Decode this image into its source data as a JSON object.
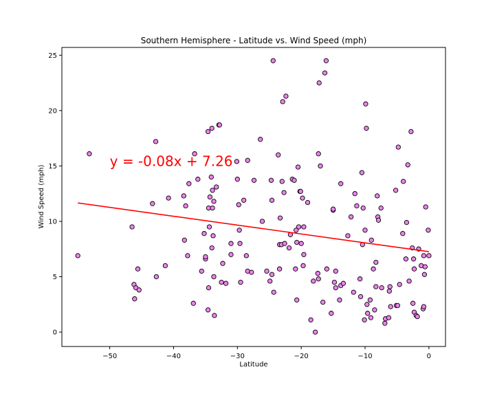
{
  "chart_data": {
    "type": "scatter",
    "title": "Southern Hemisphere - Latitude vs. Wind Speed (mph)",
    "xlabel": "Latitude",
    "ylabel": "Wind Speed (mph)",
    "xlim": [
      -57.5,
      2.6
    ],
    "ylim": [
      -1.3,
      25.7
    ],
    "xticks": [
      -50,
      -40,
      -30,
      -20,
      -10,
      0
    ],
    "yticks": [
      0,
      5,
      10,
      15,
      20,
      25
    ],
    "grid": false,
    "marker_color": "#ee82ee",
    "marker_edge_color": "#000000",
    "regression": {
      "equation": "y = -0.08x + 7.26",
      "slope": -0.08,
      "intercept": 7.26,
      "x_range": [
        -55,
        0
      ],
      "color": "#ff0000",
      "label_anchor": [
        -50,
        15
      ]
    },
    "points": [
      [
        -55.0,
        6.9
      ],
      [
        -53.2,
        16.1
      ],
      [
        -46.5,
        9.5
      ],
      [
        -46.2,
        4.3
      ],
      [
        -46.1,
        3.0
      ],
      [
        -45.9,
        4.0
      ],
      [
        -45.6,
        5.7
      ],
      [
        -45.4,
        3.8
      ],
      [
        -43.3,
        11.6
      ],
      [
        -42.8,
        17.2
      ],
      [
        -42.7,
        5.0
      ],
      [
        -41.3,
        6.0
      ],
      [
        -40.8,
        12.1
      ],
      [
        -38.4,
        12.3
      ],
      [
        -38.3,
        8.3
      ],
      [
        -38.1,
        11.4
      ],
      [
        -37.8,
        6.9
      ],
      [
        -37.6,
        13.4
      ],
      [
        -36.9,
        2.6
      ],
      [
        -36.7,
        16.1
      ],
      [
        -36.2,
        13.8
      ],
      [
        -35.6,
        5.5
      ],
      [
        -35.2,
        8.9
      ],
      [
        -35.0,
        6.6
      ],
      [
        -35.0,
        6.8
      ],
      [
        -34.6,
        2.0
      ],
      [
        -34.6,
        18.1
      ],
      [
        -34.5,
        4.0
      ],
      [
        -34.5,
        11.2
      ],
      [
        -34.4,
        9.5
      ],
      [
        -34.3,
        12.2
      ],
      [
        -34.1,
        14.0
      ],
      [
        -34.0,
        7.6
      ],
      [
        -34.0,
        18.4
      ],
      [
        -33.9,
        12.8
      ],
      [
        -33.9,
        11.2
      ],
      [
        -33.8,
        8.7
      ],
      [
        -33.7,
        11.8
      ],
      [
        -33.7,
        5.0
      ],
      [
        -33.6,
        1.5
      ],
      [
        -33.3,
        13.1
      ],
      [
        -32.9,
        18.7
      ],
      [
        -32.8,
        18.7
      ],
      [
        -32.5,
        4.5
      ],
      [
        -32.3,
        6.2
      ],
      [
        -31.8,
        4.4
      ],
      [
        -31.0,
        8.0
      ],
      [
        -31.0,
        7.0
      ],
      [
        -30.1,
        15.4
      ],
      [
        -30.0,
        13.8
      ],
      [
        -29.8,
        11.5
      ],
      [
        -29.7,
        9.2
      ],
      [
        -29.6,
        8.0
      ],
      [
        -29.5,
        4.5
      ],
      [
        -29.0,
        11.9
      ],
      [
        -28.6,
        6.9
      ],
      [
        -28.4,
        15.5
      ],
      [
        -28.4,
        5.5
      ],
      [
        -27.8,
        5.4
      ],
      [
        -27.4,
        13.7
      ],
      [
        -26.4,
        17.4
      ],
      [
        -26.1,
        10.0
      ],
      [
        -25.4,
        5.5
      ],
      [
        -24.9,
        4.6
      ],
      [
        -24.7,
        13.7
      ],
      [
        -24.6,
        5.2
      ],
      [
        -24.6,
        11.9
      ],
      [
        -24.4,
        24.5
      ],
      [
        -24.3,
        3.6
      ],
      [
        -23.6,
        16.0
      ],
      [
        -23.4,
        7.9
      ],
      [
        -23.4,
        5.7
      ],
      [
        -23.3,
        10.3
      ],
      [
        -23.1,
        7.9
      ],
      [
        -23.0,
        13.6
      ],
      [
        -22.9,
        20.8
      ],
      [
        -22.7,
        12.6
      ],
      [
        -22.6,
        8.0
      ],
      [
        -22.4,
        21.3
      ],
      [
        -21.9,
        7.6
      ],
      [
        -21.7,
        8.8
      ],
      [
        -21.4,
        13.8
      ],
      [
        -21.1,
        13.7
      ],
      [
        -20.9,
        5.7
      ],
      [
        -20.8,
        9.2
      ],
      [
        -20.7,
        2.9
      ],
      [
        -20.7,
        8.1
      ],
      [
        -20.5,
        14.9
      ],
      [
        -20.4,
        9.5
      ],
      [
        -20.2,
        12.7
      ],
      [
        -20.1,
        12.7
      ],
      [
        -20.0,
        8.0
      ],
      [
        -19.8,
        12.1
      ],
      [
        -19.7,
        6.0
      ],
      [
        -19.6,
        7.0
      ],
      [
        -19.6,
        9.5
      ],
      [
        -19.0,
        11.7
      ],
      [
        -18.5,
        1.1
      ],
      [
        -18.1,
        4.6
      ],
      [
        -17.8,
        0.0
      ],
      [
        -17.4,
        5.3
      ],
      [
        -17.3,
        4.8
      ],
      [
        -17.3,
        16.1
      ],
      [
        -17.2,
        22.5
      ],
      [
        -17.0,
        15.0
      ],
      [
        -16.6,
        2.7
      ],
      [
        -16.3,
        23.4
      ],
      [
        -16.1,
        24.5
      ],
      [
        -16.0,
        5.7
      ],
      [
        -15.3,
        1.7
      ],
      [
        -15.0,
        11.0
      ],
      [
        -15.0,
        11.1
      ],
      [
        -14.8,
        4.5
      ],
      [
        -14.6,
        5.5
      ],
      [
        -14.6,
        4.0
      ],
      [
        -14.0,
        2.9
      ],
      [
        -13.8,
        13.4
      ],
      [
        -13.8,
        4.2
      ],
      [
        -13.4,
        4.4
      ],
      [
        -12.7,
        8.7
      ],
      [
        -12.2,
        10.4
      ],
      [
        -11.8,
        3.6
      ],
      [
        -11.6,
        12.5
      ],
      [
        -11.3,
        11.4
      ],
      [
        -10.8,
        4.8
      ],
      [
        -10.7,
        3.2
      ],
      [
        -10.5,
        14.4
      ],
      [
        -10.4,
        7.9
      ],
      [
        -10.3,
        11.2
      ],
      [
        -10.1,
        1.1
      ],
      [
        -10.0,
        9.2
      ],
      [
        -9.9,
        20.6
      ],
      [
        -9.8,
        18.4
      ],
      [
        -9.7,
        2.5
      ],
      [
        -9.6,
        1.7
      ],
      [
        -9.2,
        2.9
      ],
      [
        -9.1,
        1.3
      ],
      [
        -9.0,
        8.3
      ],
      [
        -8.7,
        5.7
      ],
      [
        -8.5,
        2.0
      ],
      [
        -8.3,
        6.3
      ],
      [
        -8.3,
        4.1
      ],
      [
        -8.1,
        12.3
      ],
      [
        -8.0,
        10.4
      ],
      [
        -7.9,
        10.1
      ],
      [
        -7.5,
        11.2
      ],
      [
        -7.4,
        4.0
      ],
      [
        -6.9,
        0.8
      ],
      [
        -6.8,
        1.2
      ],
      [
        -6.3,
        1.3
      ],
      [
        -6.2,
        3.7
      ],
      [
        -6.1,
        4.1
      ],
      [
        -6.0,
        2.3
      ],
      [
        -5.2,
        12.8
      ],
      [
        -5.1,
        2.4
      ],
      [
        -4.9,
        2.4
      ],
      [
        -4.8,
        16.7
      ],
      [
        -4.6,
        4.3
      ],
      [
        -4.1,
        8.9
      ],
      [
        -4.0,
        13.6
      ],
      [
        -3.6,
        6.6
      ],
      [
        -3.5,
        9.9
      ],
      [
        -3.3,
        15.1
      ],
      [
        -3.1,
        4.6
      ],
      [
        -2.8,
        18.1
      ],
      [
        -2.6,
        7.6
      ],
      [
        -2.5,
        2.6
      ],
      [
        -2.4,
        6.6
      ],
      [
        -2.3,
        5.7
      ],
      [
        -2.3,
        1.8
      ],
      [
        -2.0,
        1.5
      ],
      [
        -1.8,
        1.4
      ],
      [
        -1.6,
        7.5
      ],
      [
        -1.2,
        6.0
      ],
      [
        -0.9,
        2.1
      ],
      [
        -0.8,
        2.3
      ],
      [
        -0.8,
        6.9
      ],
      [
        -0.7,
        5.2
      ],
      [
        -0.6,
        5.9
      ],
      [
        -0.5,
        11.3
      ],
      [
        -0.1,
        9.2
      ],
      [
        0.0,
        6.9
      ]
    ]
  }
}
